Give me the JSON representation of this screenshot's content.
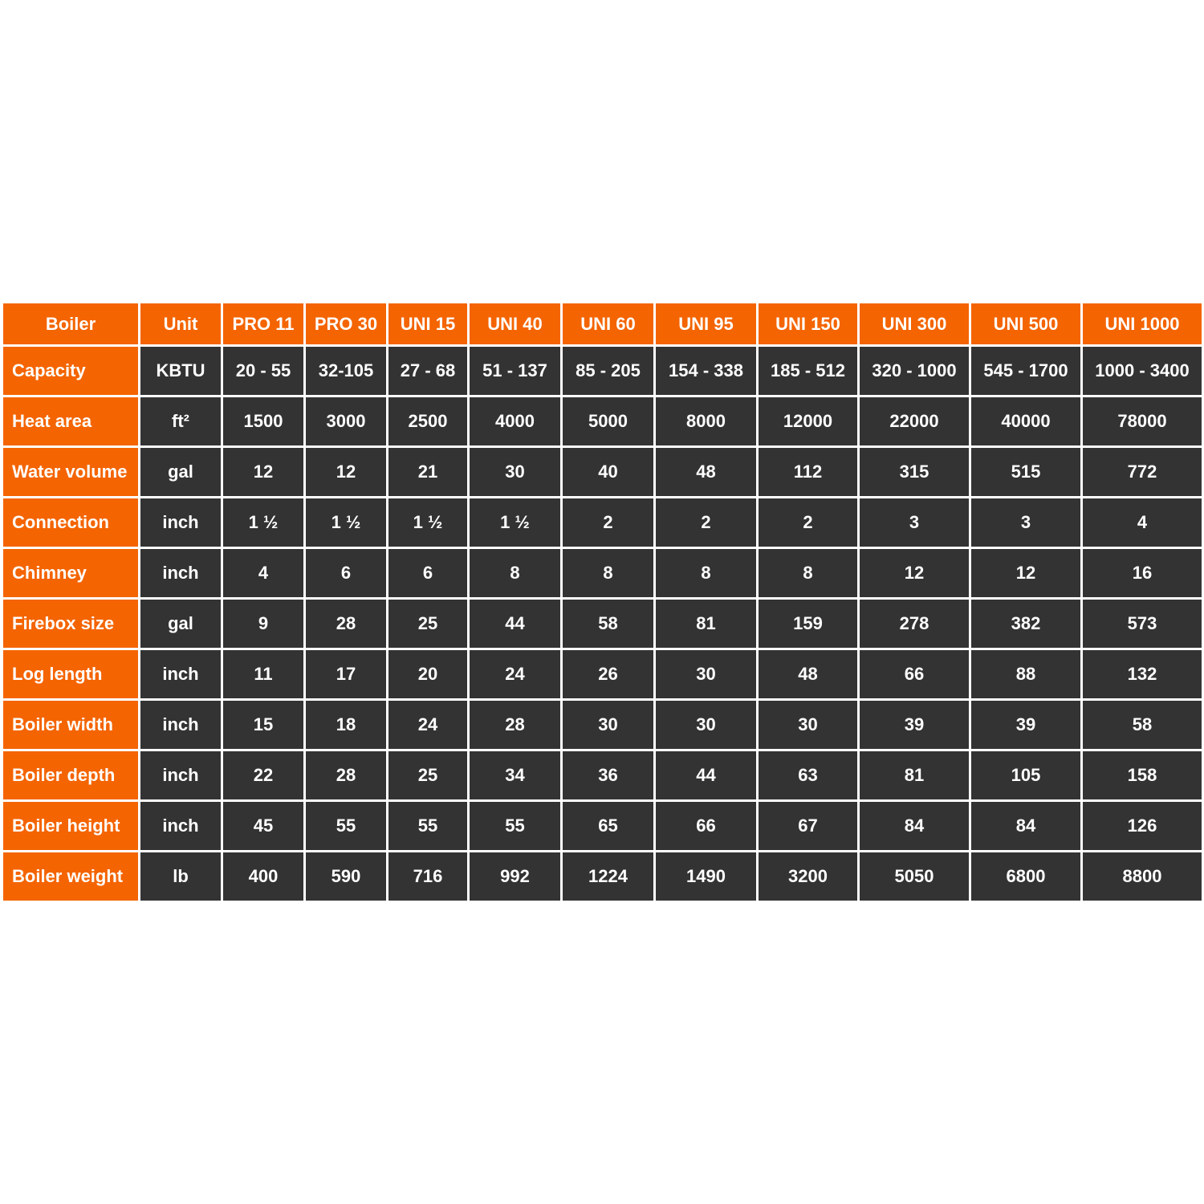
{
  "table": {
    "header": [
      "Boiler",
      "Unit",
      "PRO 11",
      "PRO 30",
      "UNI 15",
      "UNI 40",
      "UNI 60",
      "UNI 95",
      "UNI 150",
      "UNI 300",
      "UNI 500",
      "UNI 1000"
    ],
    "rows": [
      [
        "Capacity",
        "KBTU",
        "20 - 55",
        "32-105",
        "27 - 68",
        "51 - 137",
        "85 - 205",
        "154 - 338",
        "185 - 512",
        "320 - 1000",
        "545 - 1700",
        "1000 - 3400"
      ],
      [
        "Heat area",
        "ft²",
        "1500",
        "3000",
        "2500",
        "4000",
        "5000",
        "8000",
        "12000",
        "22000",
        "40000",
        "78000"
      ],
      [
        "Water volume",
        "gal",
        "12",
        "12",
        "21",
        "30",
        "40",
        "48",
        "112",
        "315",
        "515",
        "772"
      ],
      [
        "Connection",
        "inch",
        "1 ½",
        "1 ½",
        "1 ½",
        "1 ½",
        "2",
        "2",
        "2",
        "3",
        "3",
        "4"
      ],
      [
        "Chimney",
        "inch",
        "4",
        "6",
        "6",
        "8",
        "8",
        "8",
        "8",
        "12",
        "12",
        "16"
      ],
      [
        "Firebox size",
        "gal",
        "9",
        "28",
        "25",
        "44",
        "58",
        "81",
        "159",
        "278",
        "382",
        "573"
      ],
      [
        "Log length",
        "inch",
        "11",
        "17",
        "20",
        "24",
        "26",
        "30",
        "48",
        "66",
        "88",
        "132"
      ],
      [
        "Boiler width",
        "inch",
        "15",
        "18",
        "24",
        "28",
        "30",
        "30",
        "30",
        "39",
        "39",
        "58"
      ],
      [
        "Boiler depth",
        "inch",
        "22",
        "28",
        "25",
        "34",
        "36",
        "44",
        "63",
        "81",
        "105",
        "158"
      ],
      [
        "Boiler height",
        "inch",
        "45",
        "55",
        "55",
        "55",
        "65",
        "66",
        "67",
        "84",
        "84",
        "126"
      ],
      [
        "Boiler weight",
        "lb",
        "400",
        "590",
        "716",
        "992",
        "1224",
        "1490",
        "3200",
        "5050",
        "6800",
        "8800"
      ]
    ]
  }
}
